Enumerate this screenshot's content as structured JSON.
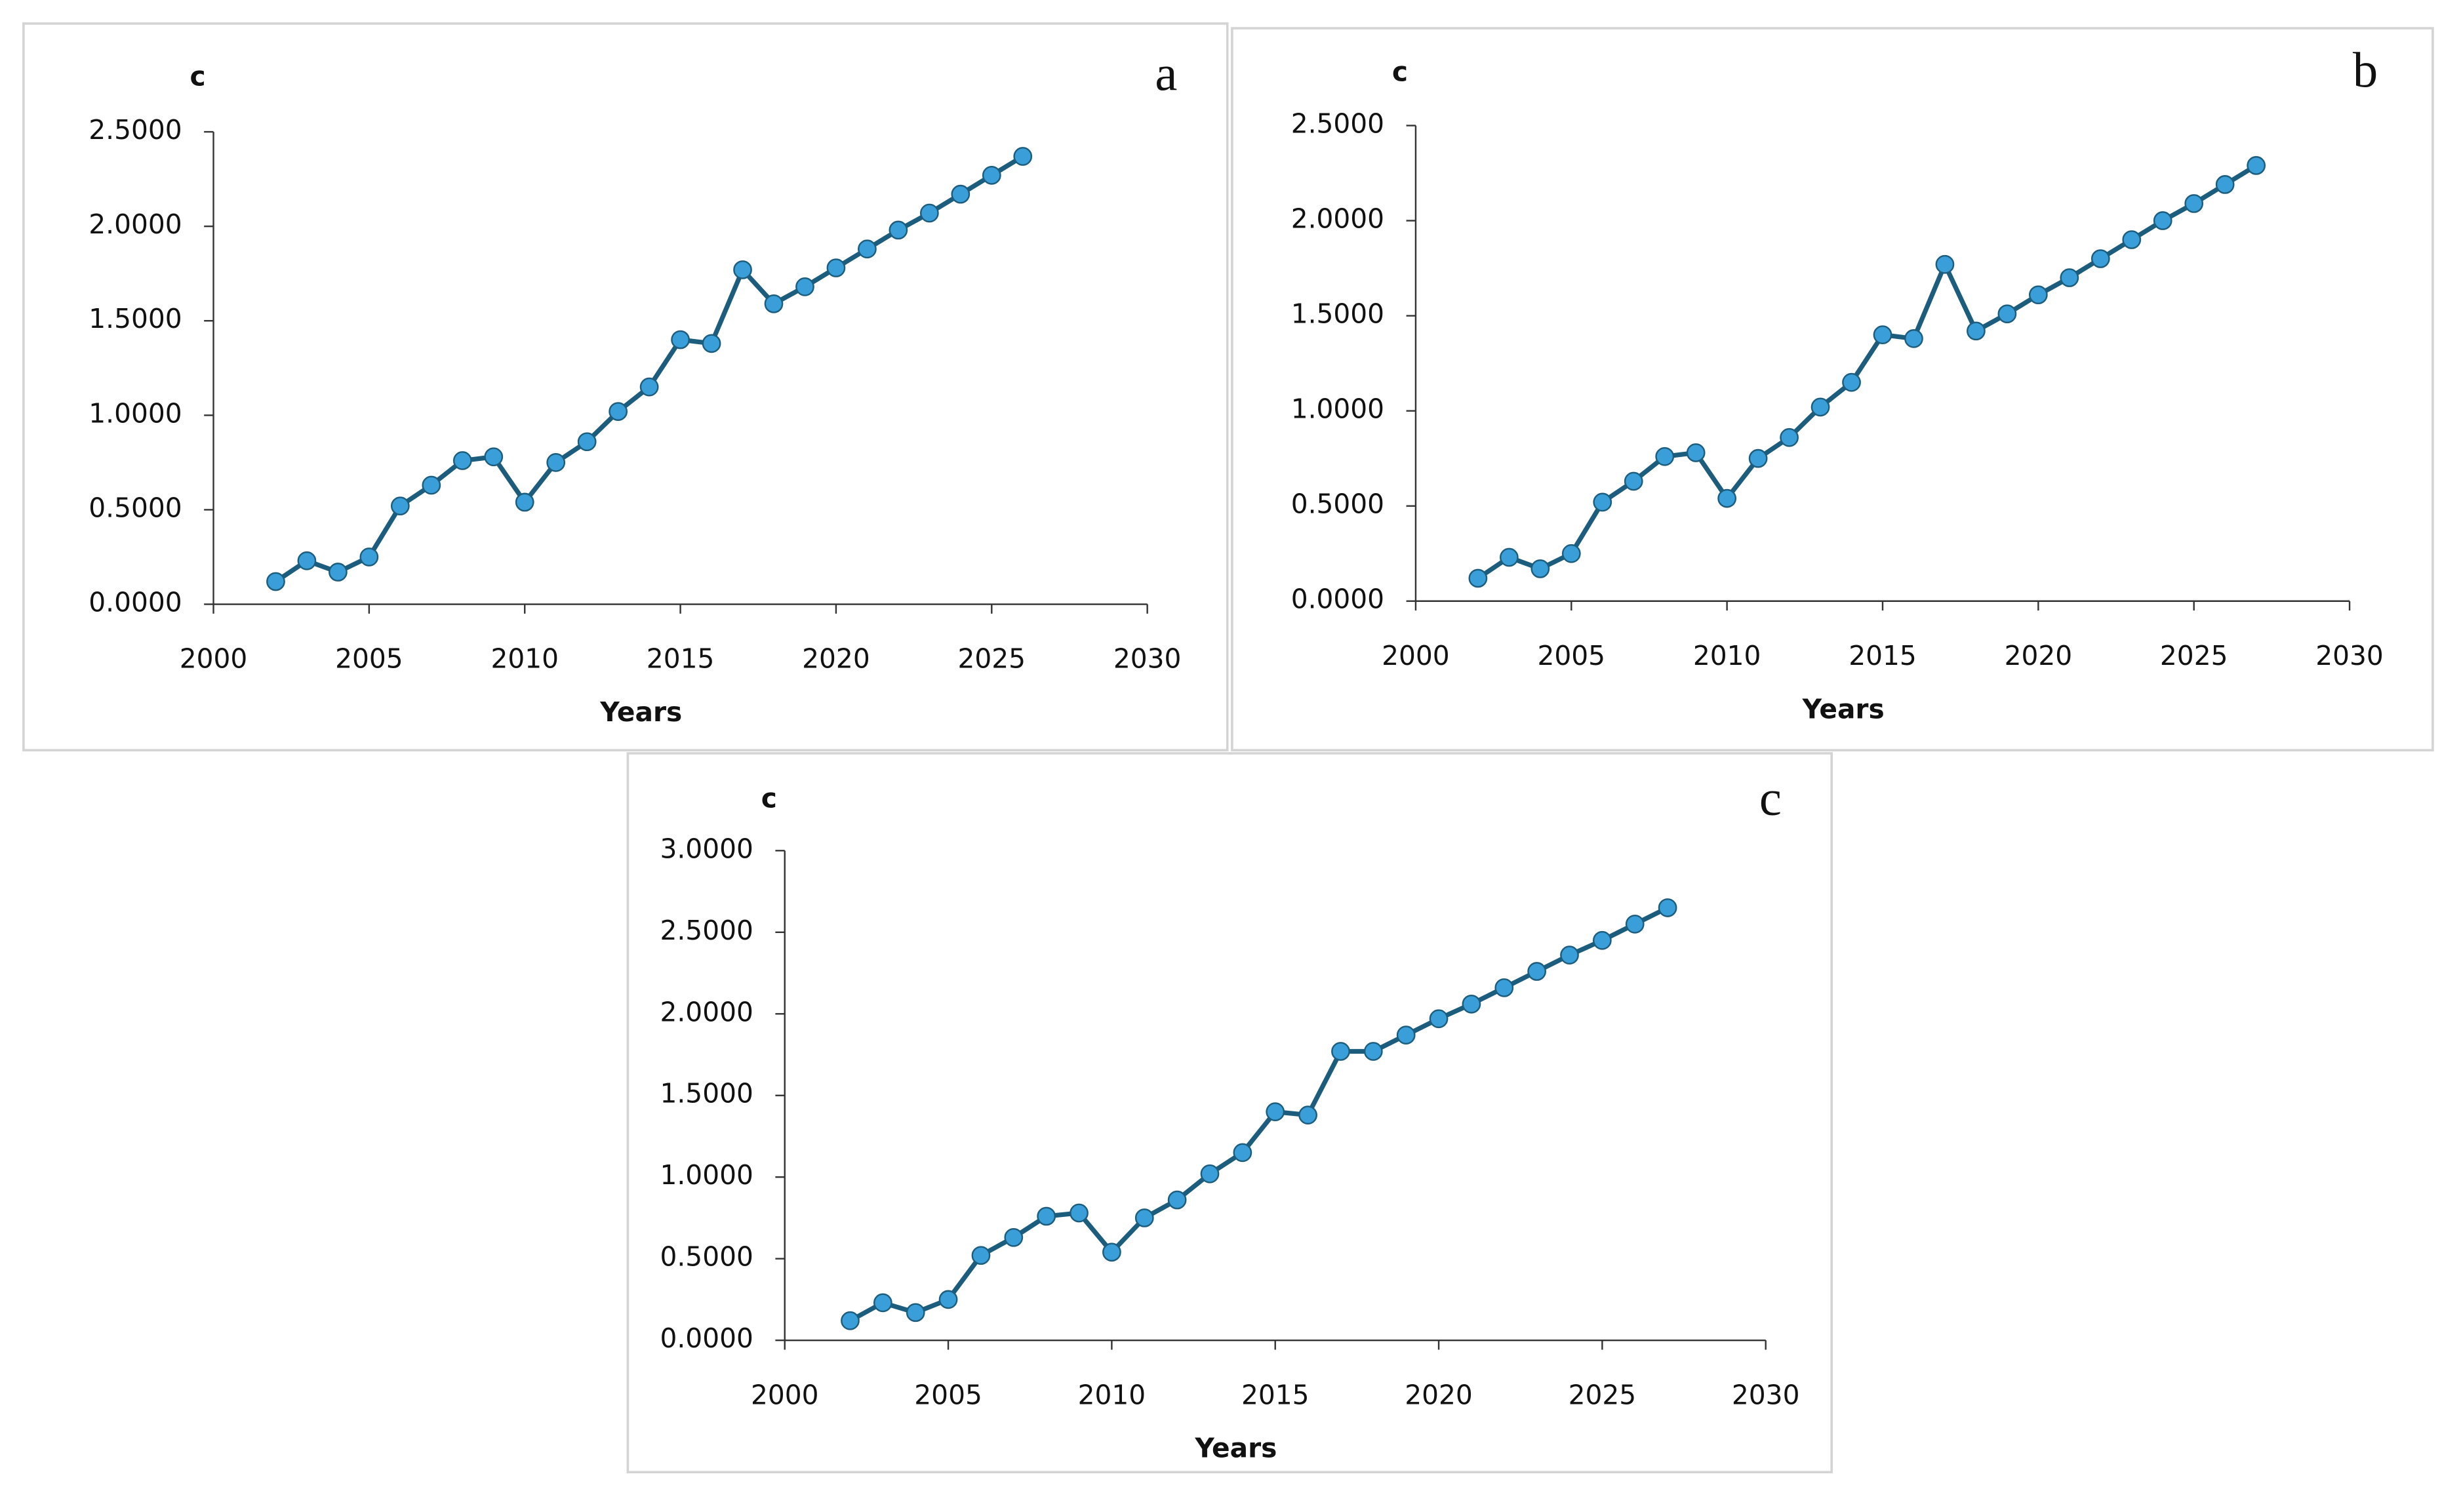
{
  "chart_data": [
    {
      "type": "line",
      "panel_label": "a",
      "y_label": "c",
      "x_label": "Years",
      "x": [
        2002,
        2003,
        2004,
        2005,
        2006,
        2007,
        2008,
        2009,
        2010,
        2011,
        2012,
        2013,
        2014,
        2015,
        2016,
        2017,
        2018,
        2019,
        2020,
        2021,
        2022,
        2023,
        2024,
        2025,
        2026
      ],
      "values": [
        0.12,
        0.23,
        0.17,
        0.25,
        0.52,
        0.63,
        0.76,
        0.78,
        0.54,
        0.75,
        0.86,
        1.02,
        1.15,
        1.4,
        1.38,
        1.77,
        1.59,
        1.68,
        1.78,
        1.88,
        1.98,
        2.07,
        2.17,
        2.27,
        2.37
      ],
      "color": "#1c5d7e",
      "marker_color": "#3a9fd8",
      "xlim": [
        2000,
        2030
      ],
      "xticks": [
        2000,
        2005,
        2010,
        2015,
        2020,
        2025,
        2030
      ],
      "ylim": [
        0,
        2.5
      ],
      "yticks": [
        {
          "value": 0,
          "label": "0.0000"
        },
        {
          "value": 0.5,
          "label": "0.5000"
        },
        {
          "value": 1,
          "label": "1.0000"
        },
        {
          "value": 1.5,
          "label": "1.5000"
        },
        {
          "value": 2,
          "label": "2.0000"
        },
        {
          "value": 2.5,
          "label": "2.5000"
        }
      ]
    },
    {
      "type": "line",
      "panel_label": "b",
      "y_label": "c",
      "x_label": "Years",
      "x": [
        2002,
        2003,
        2004,
        2005,
        2006,
        2007,
        2008,
        2009,
        2010,
        2011,
        2012,
        2013,
        2014,
        2015,
        2016,
        2017,
        2018,
        2019,
        2020,
        2021,
        2022,
        2023,
        2024,
        2025,
        2026,
        2027
      ],
      "values": [
        0.12,
        0.23,
        0.17,
        0.25,
        0.52,
        0.63,
        0.76,
        0.78,
        0.54,
        0.75,
        0.86,
        1.02,
        1.15,
        1.4,
        1.38,
        1.77,
        1.42,
        1.51,
        1.61,
        1.7,
        1.8,
        1.9,
        2.0,
        2.09,
        2.19,
        2.29
      ],
      "color": "#1c5d7e",
      "marker_color": "#3a9fd8",
      "xlim": [
        2000,
        2030
      ],
      "xticks": [
        2000,
        2005,
        2010,
        2015,
        2020,
        2025,
        2030
      ],
      "ylim": [
        0,
        2.5
      ],
      "yticks": [
        {
          "value": 0,
          "label": "0.0000"
        },
        {
          "value": 0.5,
          "label": "0.5000"
        },
        {
          "value": 1,
          "label": "1.0000"
        },
        {
          "value": 1.5,
          "label": "1.5000"
        },
        {
          "value": 2,
          "label": "2.0000"
        },
        {
          "value": 2.5,
          "label": "2.5000"
        }
      ]
    },
    {
      "type": "line",
      "panel_label": "c",
      "y_label": "c",
      "x_label": "Years",
      "x": [
        2002,
        2003,
        2004,
        2005,
        2006,
        2007,
        2008,
        2009,
        2010,
        2011,
        2012,
        2013,
        2014,
        2015,
        2016,
        2017,
        2018,
        2019,
        2020,
        2021,
        2022,
        2023,
        2024,
        2025,
        2026,
        2027
      ],
      "values": [
        0.12,
        0.23,
        0.17,
        0.25,
        0.52,
        0.63,
        0.76,
        0.78,
        0.54,
        0.75,
        0.86,
        1.02,
        1.15,
        1.4,
        1.38,
        1.77,
        1.77,
        1.87,
        1.97,
        2.06,
        2.16,
        2.26,
        2.36,
        2.45,
        2.55,
        2.65
      ],
      "color": "#1c5d7e",
      "marker_color": "#3a9fd8",
      "xlim": [
        2000,
        2030
      ],
      "xticks": [
        2000,
        2005,
        2010,
        2015,
        2020,
        2025,
        2030
      ],
      "ylim": [
        0,
        3
      ],
      "yticks": [
        {
          "value": 0,
          "label": "0.0000"
        },
        {
          "value": 0.5,
          "label": "0.5000"
        },
        {
          "value": 1,
          "label": "1.0000"
        },
        {
          "value": 1.5,
          "label": "1.5000"
        },
        {
          "value": 2,
          "label": "2.0000"
        },
        {
          "value": 2.5,
          "label": "2.5000"
        },
        {
          "value": 3,
          "label": "3.0000"
        }
      ]
    }
  ]
}
